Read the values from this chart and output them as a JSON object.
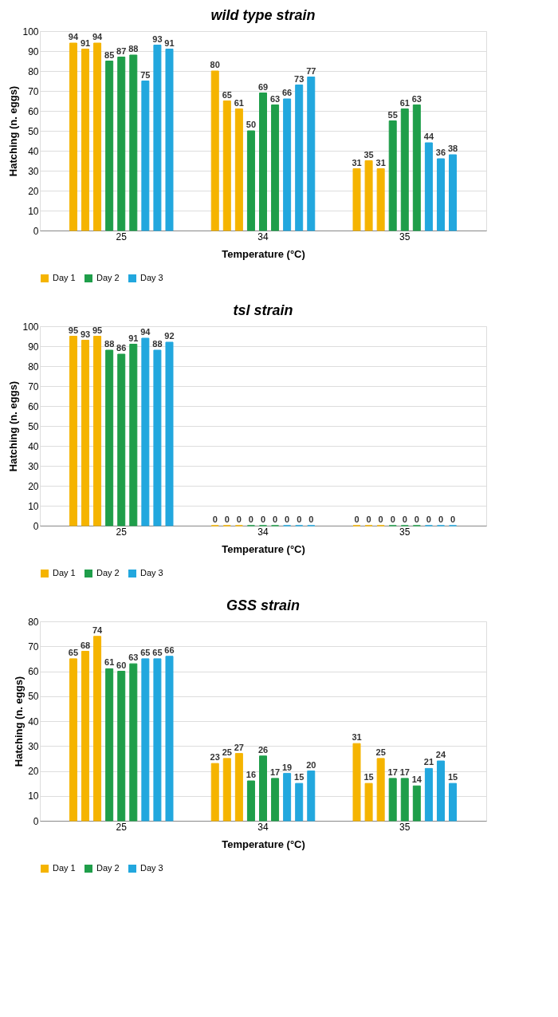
{
  "chart_data": [
    {
      "type": "bar",
      "title": "wild type strain",
      "xlabel": "Temperature (°C)",
      "ylabel": "Hatching (n. eggs)",
      "categories": [
        "25",
        "34",
        "35"
      ],
      "ylim": [
        0,
        100
      ],
      "yticks": [
        0,
        10,
        20,
        30,
        40,
        50,
        60,
        70,
        80,
        90,
        100
      ],
      "grid": "y",
      "legend": "bottom left",
      "data_labels": true,
      "series": [
        {
          "name": "Day 1",
          "color": "#f5b400",
          "values": [
            94,
            80,
            31
          ]
        },
        {
          "color": "#f5b400",
          "values": [
            91,
            65,
            35
          ]
        },
        {
          "color": "#f5b400",
          "values": [
            94,
            61,
            31
          ]
        },
        {
          "name": "Day 2",
          "color": "#1f9e4a",
          "values": [
            85,
            50,
            55
          ]
        },
        {
          "color": "#1f9e4a",
          "values": [
            87,
            69,
            61
          ]
        },
        {
          "color": "#1f9e4a",
          "values": [
            88,
            63,
            63
          ]
        },
        {
          "name": "Day 3",
          "color": "#22a7de",
          "values": [
            75,
            66,
            44
          ]
        },
        {
          "color": "#22a7de",
          "values": [
            93,
            73,
            36
          ]
        },
        {
          "color": "#22a7de",
          "values": [
            91,
            77,
            38
          ]
        }
      ]
    },
    {
      "type": "bar",
      "title": "tsl strain",
      "xlabel": "Temperature (°C)",
      "ylabel": "Hatching (n. eggs)",
      "categories": [
        "25",
        "34",
        "35"
      ],
      "ylim": [
        0,
        100
      ],
      "yticks": [
        0,
        10,
        20,
        30,
        40,
        50,
        60,
        70,
        80,
        90,
        100
      ],
      "grid": "y",
      "legend": "bottom left",
      "data_labels": true,
      "series": [
        {
          "name": "Day 1",
          "color": "#f5b400",
          "values": [
            95,
            0,
            0
          ]
        },
        {
          "color": "#f5b400",
          "values": [
            93,
            0,
            0
          ]
        },
        {
          "color": "#f5b400",
          "values": [
            95,
            0,
            0
          ]
        },
        {
          "name": "Day 2",
          "color": "#1f9e4a",
          "values": [
            88,
            0,
            0
          ]
        },
        {
          "color": "#1f9e4a",
          "values": [
            86,
            0,
            0
          ]
        },
        {
          "color": "#1f9e4a",
          "values": [
            91,
            0,
            0
          ]
        },
        {
          "name": "Day 3",
          "color": "#22a7de",
          "values": [
            94,
            0,
            0
          ]
        },
        {
          "color": "#22a7de",
          "values": [
            88,
            0,
            0
          ]
        },
        {
          "color": "#22a7de",
          "values": [
            92,
            0,
            0
          ]
        }
      ]
    },
    {
      "type": "bar",
      "title": "GSS strain",
      "xlabel": "Temperature (°C)",
      "ylabel": "Hatching (n. eggs)",
      "categories": [
        "25",
        "34",
        "35"
      ],
      "ylim": [
        0,
        80
      ],
      "yticks": [
        0,
        10,
        20,
        30,
        40,
        50,
        60,
        70,
        80
      ],
      "grid": "y",
      "legend": "bottom left",
      "data_labels": true,
      "series": [
        {
          "name": "Day 1",
          "color": "#f5b400",
          "values": [
            65,
            23,
            31
          ]
        },
        {
          "color": "#f5b400",
          "values": [
            68,
            25,
            15
          ]
        },
        {
          "color": "#f5b400",
          "values": [
            74,
            27,
            25
          ]
        },
        {
          "name": "Day 2",
          "color": "#1f9e4a",
          "values": [
            61,
            16,
            17
          ]
        },
        {
          "color": "#1f9e4a",
          "values": [
            60,
            26,
            17
          ]
        },
        {
          "color": "#1f9e4a",
          "values": [
            63,
            17,
            14
          ]
        },
        {
          "name": "Day 3",
          "color": "#22a7de",
          "values": [
            65,
            19,
            21
          ]
        },
        {
          "color": "#22a7de",
          "values": [
            65,
            15,
            24
          ]
        },
        {
          "color": "#22a7de",
          "values": [
            66,
            20,
            15
          ]
        }
      ]
    }
  ]
}
